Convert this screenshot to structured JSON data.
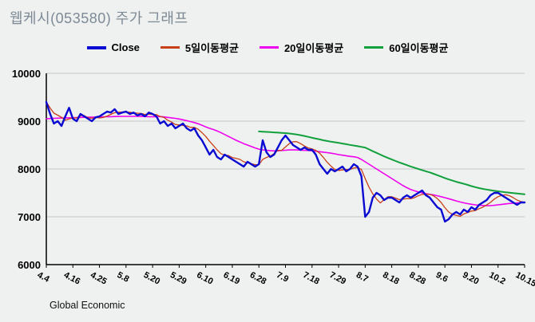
{
  "header": {
    "title": "웹케시(053580) 주가 그래프"
  },
  "footer": {
    "credit": "Global Economic"
  },
  "chart_data": {
    "type": "line",
    "title": "웹케시(053580) 주가 그래프",
    "ylim": [
      6000,
      10000
    ],
    "yticks": [
      6000,
      7000,
      8000,
      9000,
      10000
    ],
    "grid": "horizontal",
    "legend_position": "top",
    "x_tick_labels": [
      "4.4",
      "4.16",
      "4.25",
      "5.8",
      "5.20",
      "5.29",
      "6.10",
      "6.19",
      "6.28",
      "7.9",
      "7.18",
      "7.29",
      "8.7",
      "8.18",
      "8.28",
      "9.6",
      "9.20",
      "10.2",
      "10.15"
    ],
    "x_tick_indices": [
      0,
      7,
      14,
      21,
      28,
      35,
      42,
      49,
      56,
      63,
      70,
      77,
      84,
      91,
      98,
      105,
      112,
      119,
      126
    ],
    "series": [
      {
        "name": "Close",
        "color": "#0a0ad2",
        "width": 2.4,
        "values": [
          9400,
          9150,
          8950,
          9000,
          8900,
          9100,
          9280,
          9050,
          9000,
          9150,
          9100,
          9050,
          9000,
          9080,
          9100,
          9150,
          9200,
          9180,
          9250,
          9150,
          9180,
          9200,
          9150,
          9180,
          9120,
          9150,
          9100,
          9180,
          9150,
          9100,
          8950,
          9000,
          8900,
          8950,
          8850,
          8900,
          8950,
          8850,
          8800,
          8850,
          8700,
          8600,
          8450,
          8300,
          8400,
          8250,
          8200,
          8300,
          8250,
          8200,
          8150,
          8100,
          8050,
          8150,
          8100,
          8050,
          8100,
          8600,
          8350,
          8250,
          8300,
          8450,
          8600,
          8700,
          8600,
          8500,
          8450,
          8400,
          8450,
          8400,
          8400,
          8300,
          8100,
          8000,
          7900,
          8000,
          7950,
          8000,
          8050,
          7950,
          8000,
          8100,
          8050,
          7850,
          7000,
          7100,
          7400,
          7500,
          7450,
          7350,
          7400,
          7400,
          7350,
          7300,
          7400,
          7450,
          7400,
          7450,
          7500,
          7550,
          7450,
          7400,
          7300,
          7200,
          7150,
          6900,
          6950,
          7050,
          7100,
          7050,
          7150,
          7100,
          7200,
          7150,
          7250,
          7300,
          7350,
          7450,
          7500,
          7500,
          7450,
          7400,
          7350,
          7300,
          7250,
          7300,
          7300
        ]
      },
      {
        "name": "5일이동평균",
        "color": "#c8401a",
        "width": 1.3,
        "moving_average_of": "Close",
        "window": 5
      },
      {
        "name": "20일이동평균",
        "color": "#ee00ee",
        "width": 1.6,
        "values": [
          9050,
          9055,
          9060,
          9062,
          9065,
          9068,
          9070,
          9072,
          9075,
          9078,
          9080,
          9082,
          9084,
          9086,
          9088,
          9090,
          9092,
          9094,
          9096,
          9098,
          9100,
          9100,
          9100,
          9100,
          9100,
          9098,
          9096,
          9094,
          9092,
          9094,
          9096,
          9088,
          9078,
          9068,
          9058,
          9045,
          9028,
          9010,
          8990,
          8970,
          8945,
          8915,
          8880,
          8850,
          8825,
          8795,
          8760,
          8720,
          8680,
          8640,
          8600,
          8565,
          8530,
          8500,
          8470,
          8440,
          8415,
          8400,
          8390,
          8382,
          8378,
          8380,
          8386,
          8392,
          8398,
          8400,
          8398,
          8394,
          8390,
          8386,
          8380,
          8372,
          8362,
          8352,
          8342,
          8330,
          8316,
          8300,
          8288,
          8276,
          8264,
          8255,
          8240,
          8200,
          8150,
          8100,
          8050,
          8000,
          7950,
          7900,
          7850,
          7800,
          7750,
          7700,
          7650,
          7608,
          7570,
          7544,
          7520,
          7500,
          7482,
          7470,
          7458,
          7440,
          7420,
          7400,
          7378,
          7355,
          7332,
          7310,
          7292,
          7275,
          7262,
          7250,
          7242,
          7236,
          7232,
          7234,
          7240,
          7250,
          7260,
          7270,
          7278,
          7284,
          7290,
          7295,
          7300
        ]
      },
      {
        "name": "60일이동평균",
        "color": "#11a03c",
        "width": 2.0,
        "values": [
          null,
          null,
          null,
          null,
          null,
          null,
          null,
          null,
          null,
          null,
          null,
          null,
          null,
          null,
          null,
          null,
          null,
          null,
          null,
          null,
          null,
          null,
          null,
          null,
          null,
          null,
          null,
          null,
          null,
          null,
          null,
          null,
          null,
          null,
          null,
          null,
          null,
          null,
          null,
          null,
          null,
          null,
          null,
          null,
          null,
          null,
          null,
          null,
          null,
          null,
          null,
          null,
          null,
          null,
          null,
          null,
          8785,
          8780,
          8775,
          8770,
          8765,
          8760,
          8755,
          8750,
          8742,
          8732,
          8720,
          8706,
          8690,
          8672,
          8652,
          8635,
          8618,
          8600,
          8585,
          8570,
          8558,
          8546,
          8532,
          8518,
          8504,
          8490,
          8476,
          8462,
          8448,
          8410,
          8372,
          8336,
          8300,
          8264,
          8230,
          8198,
          8166,
          8136,
          8108,
          8080,
          8052,
          8026,
          8000,
          7976,
          7952,
          7928,
          7900,
          7870,
          7840,
          7810,
          7782,
          7756,
          7732,
          7710,
          7690,
          7666,
          7642,
          7620,
          7600,
          7584,
          7570,
          7556,
          7544,
          7534,
          7524,
          7514,
          7505,
          7496,
          7488,
          7480,
          7472
        ]
      }
    ]
  }
}
